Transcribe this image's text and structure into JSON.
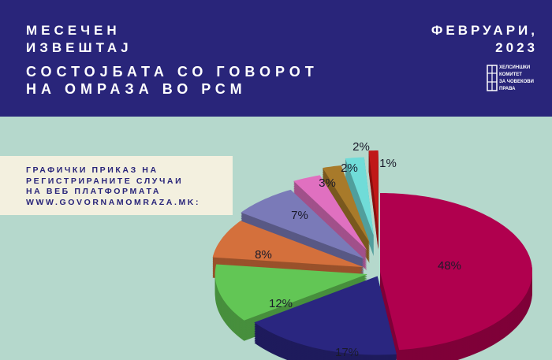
{
  "header": {
    "title_line1": "МЕСЕЧЕН",
    "title_line2": "ИЗВЕШТАЈ",
    "subtitle_line1": "СОСТОЈБАТА СО ГОВОРОТ",
    "subtitle_line2": "НА ОМРАЗА ВО РСМ",
    "date_line1": "ФЕВРУАРИ,",
    "date_line2": "2023",
    "logo_text": [
      "ХЕЛСИНШКИ",
      "КОМИТЕТ",
      "ЗА ЧОВЕКОВИ",
      "ПРАВА"
    ],
    "background_color": "#29257a"
  },
  "note": {
    "lines": [
      "ГРАФИЧКИ ПРИКАЗ НА",
      "РЕГИСТРИРАНИТЕ СЛУЧАИ",
      "НА ВЕБ ПЛАТФОРМАТА",
      "WWW.GOVORNAMOMRAZA.MK:"
    ]
  },
  "chart_data": {
    "type": "pie",
    "style": "3d-exploded",
    "values": [
      48,
      17,
      12,
      8,
      7,
      3,
      2,
      2,
      1
    ],
    "labels": [
      "48%",
      "17%",
      "12%",
      "8%",
      "7%",
      "3%",
      "2%",
      "2%",
      "1%"
    ],
    "colors": [
      "#b0004e",
      "#2a2680",
      "#62c655",
      "#d4703c",
      "#7a7ab8",
      "#e070c0",
      "#a87a2a",
      "#70dcd8",
      "#c01818"
    ],
    "legend": "none"
  }
}
